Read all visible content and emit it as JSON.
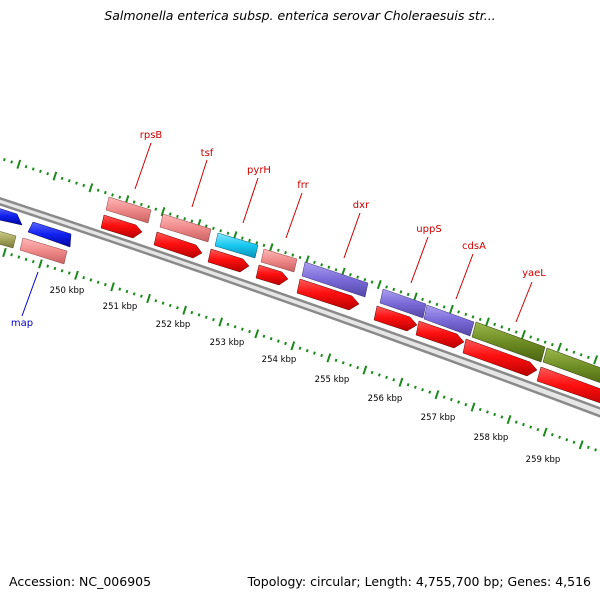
{
  "title": "Salmonella enterica subsp. enterica serovar Choleraesuis str...",
  "footer": {
    "accession": "Accession: NC_006905",
    "summary": "Topology: circular; Length: 4,755,700 bp; Genes: 4,516"
  },
  "scale_labels": [
    "250 kbp",
    "251 kbp",
    "252 kbp",
    "253 kbp",
    "254 kbp",
    "255 kbp",
    "256 kbp",
    "257 kbp",
    "258 kbp",
    "259 kbp"
  ],
  "gene_labels": [
    {
      "name": "map",
      "color": "#0000cc"
    },
    {
      "name": "rpsB",
      "color": "#cc0000"
    },
    {
      "name": "tsf",
      "color": "#cc0000"
    },
    {
      "name": "pyrH",
      "color": "#cc0000"
    },
    {
      "name": "frr",
      "color": "#cc0000"
    },
    {
      "name": "dxr",
      "color": "#cc0000"
    },
    {
      "name": "uppS",
      "color": "#cc0000"
    },
    {
      "name": "cdsA",
      "color": "#cc0000"
    },
    {
      "name": "yaeL",
      "color": "#cc0000"
    }
  ],
  "colors": {
    "backbone": "#808080",
    "tick": "#1a8a1a",
    "cds": "#ee1111",
    "rna_pink": "#ee8080",
    "blue": "#0a14e0",
    "cyan": "#10c8ef",
    "purple": "#7a6ad8",
    "olive": "#6e8c24",
    "khaki": "#a8a860"
  }
}
